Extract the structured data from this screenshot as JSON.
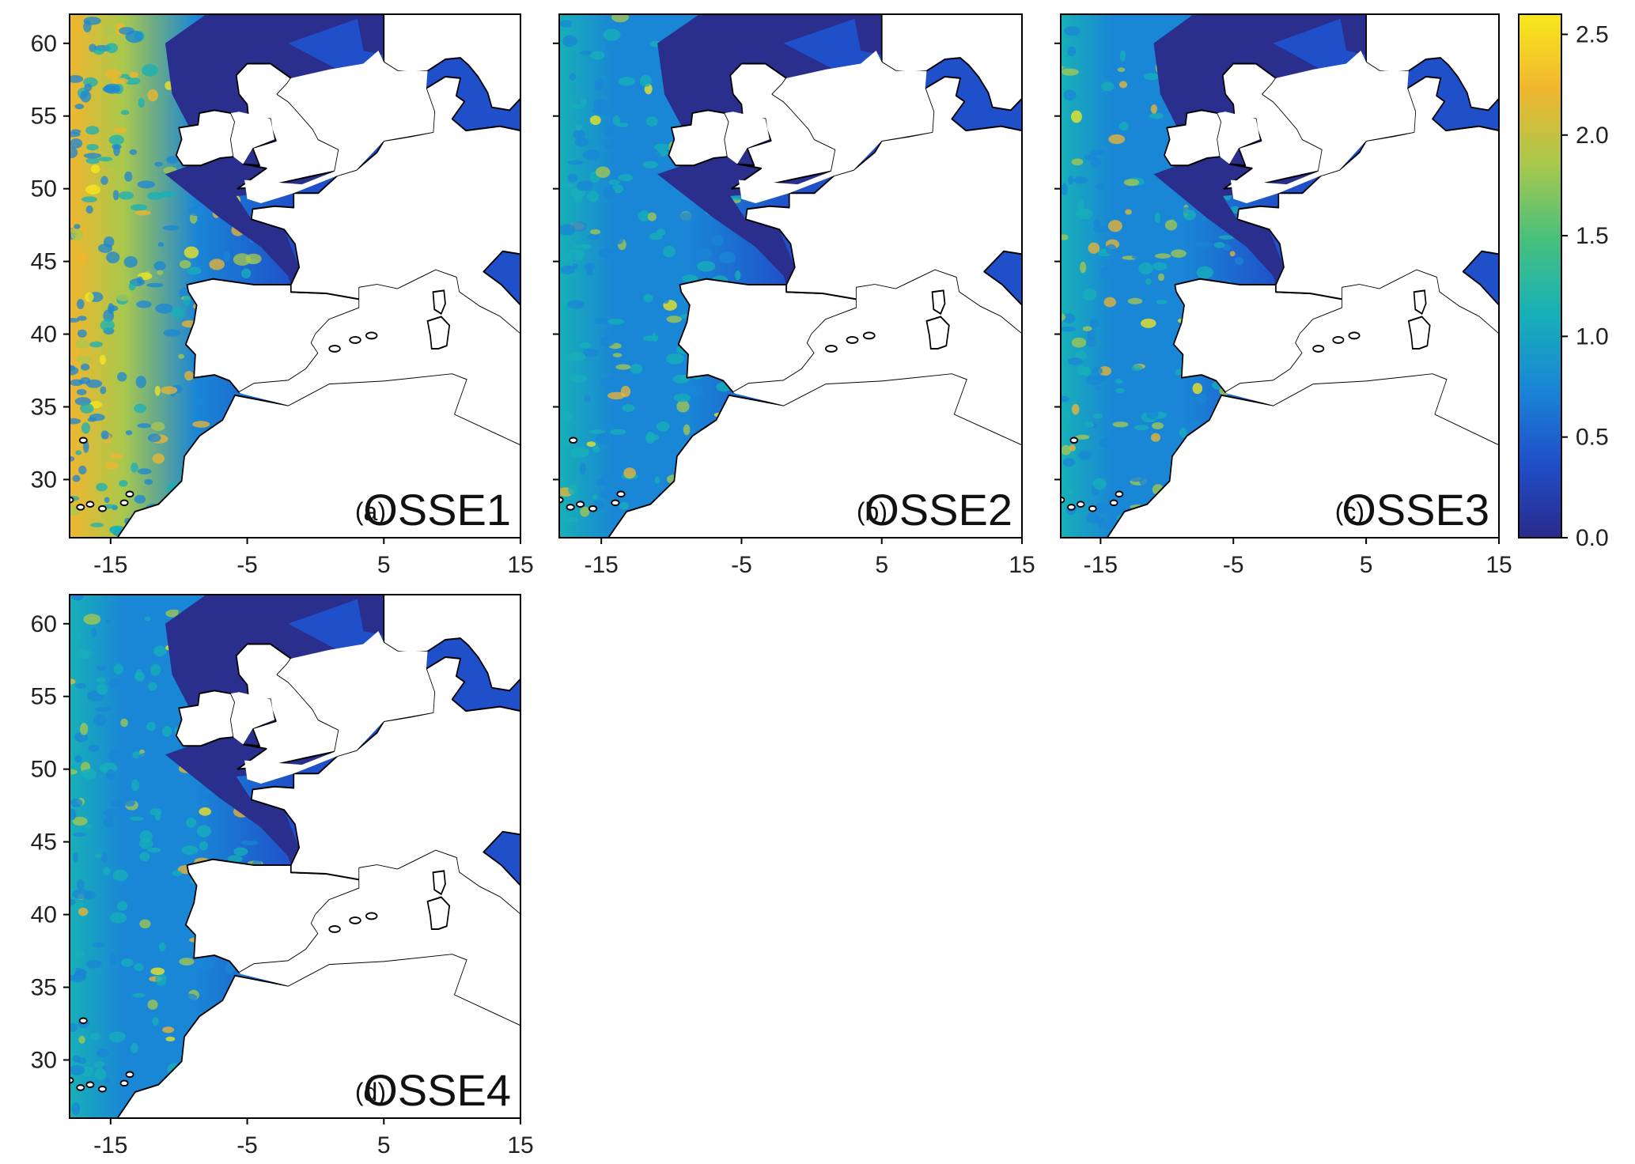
{
  "figure": {
    "colorbar": {
      "min": 0.0,
      "max": 2.6,
      "ticks": [
        "0.0",
        "0.5",
        "1.0",
        "1.5",
        "2.0",
        "2.5"
      ],
      "tick_values": [
        0,
        0.5,
        1.0,
        1.5,
        2.0,
        2.5
      ],
      "colormap": [
        "#2a2a8c",
        "#1f4fc9",
        "#1a86d6",
        "#17b0b8",
        "#48c07c",
        "#a9c84c",
        "#f0b62f",
        "#f8e81c"
      ]
    },
    "axes": {
      "lon_ticks": [
        "-15",
        "-5",
        "5",
        "15"
      ],
      "lon_values": [
        -15,
        -5,
        5,
        15
      ],
      "lat_ticks": [
        "60",
        "55",
        "50",
        "45",
        "40",
        "35",
        "30"
      ],
      "lat_values": [
        60,
        55,
        50,
        45,
        40,
        35,
        30
      ],
      "lon_range": [
        -18,
        15
      ],
      "lat_range": [
        26,
        62
      ]
    },
    "colors": {
      "land": "#ffffff",
      "coast": "#000000",
      "shelf": "#2a2f8e"
    },
    "panels": [
      {
        "letter": "(a)",
        "name": "OSSE1",
        "intensity": 1.0
      },
      {
        "letter": "(b)",
        "name": "OSSE2",
        "intensity": 0.62
      },
      {
        "letter": "(c)",
        "name": "OSSE3",
        "intensity": 0.55
      },
      {
        "letter": "(d)",
        "name": "OSSE4",
        "intensity": 0.5
      }
    ]
  }
}
